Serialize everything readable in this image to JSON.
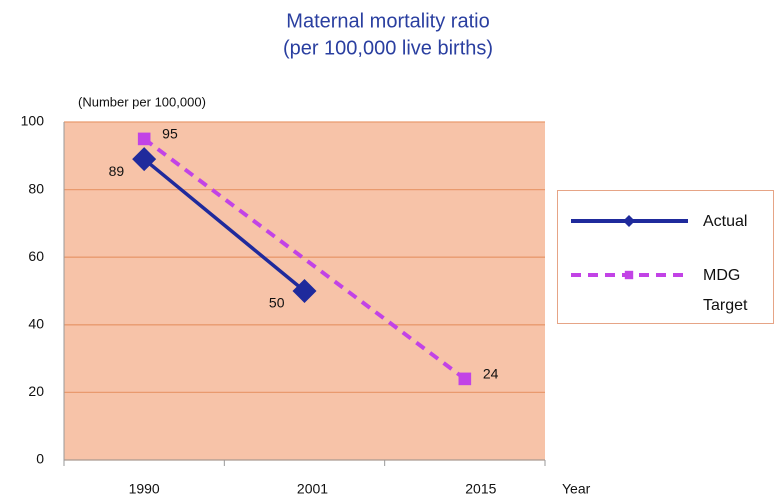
{
  "chart_data": {
    "type": "line",
    "title": "Maternal mortality ratio",
    "subtitle": "(per 100,000 live births)",
    "y_axis_label": "(Number per 100,000)",
    "x_axis_label": "Year",
    "categories": [
      "1990",
      "2001",
      "2015"
    ],
    "series": [
      {
        "name": "Actual",
        "color": "#1f2a9c",
        "values": [
          89,
          50,
          null
        ],
        "marker": "diamond",
        "dash": "solid"
      },
      {
        "name": "MDG Target",
        "color": "#c243e6",
        "values": [
          95,
          null,
          24
        ],
        "marker": "square",
        "dash": "dashed",
        "connect_gaps": true
      }
    ],
    "ylim": [
      0,
      100
    ],
    "yticks": [
      0,
      20,
      40,
      60,
      80,
      100
    ],
    "grid": true
  }
}
